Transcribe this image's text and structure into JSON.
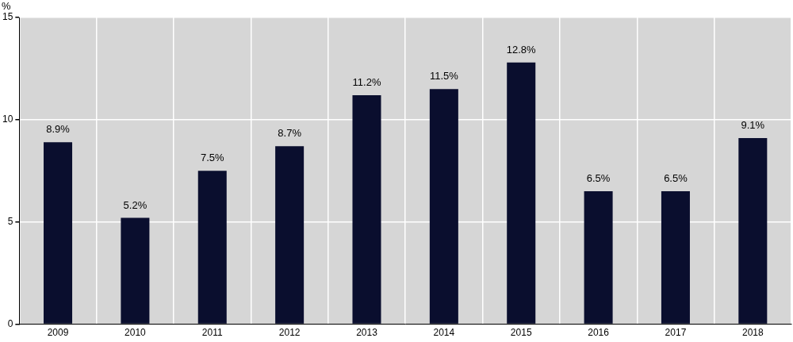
{
  "chart_data": {
    "type": "bar",
    "ylabel": "%",
    "categories": [
      "2009",
      "2010",
      "2011",
      "2012",
      "2013",
      "2014",
      "2015",
      "2016",
      "2017",
      "2018"
    ],
    "values": [
      8.9,
      5.2,
      7.5,
      8.7,
      11.2,
      11.5,
      12.8,
      6.5,
      6.5,
      9.1
    ],
    "value_labels": [
      "8.9%",
      "5.2%",
      "7.5%",
      "8.7%",
      "11.2%",
      "11.5%",
      "12.8%",
      "6.5%",
      "6.5%",
      "9.1%"
    ],
    "color": "#0a0e2e",
    "ylim": [
      0,
      15
    ],
    "yticks": [
      0,
      5,
      10,
      15
    ],
    "grid": true,
    "data_labels": true
  }
}
